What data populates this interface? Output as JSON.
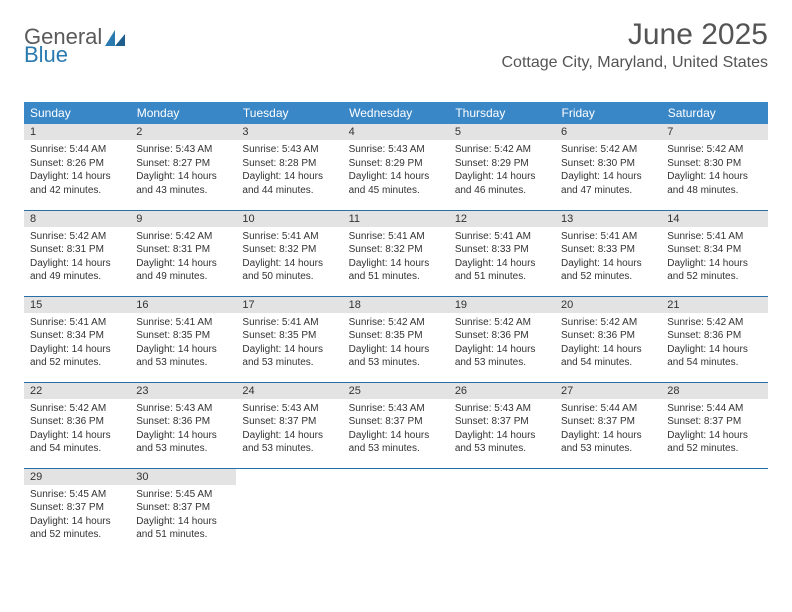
{
  "logo": {
    "general": "General",
    "blue": "Blue"
  },
  "title": "June 2025",
  "location": "Cottage City, Maryland, United States",
  "colors": {
    "header_bg": "#3a87c8",
    "header_fg": "#ffffff",
    "daynum_bg": "#e3e3e3",
    "row_divider": "#2a6ea8",
    "title_fg": "#545454",
    "body_fg": "#333333",
    "logo_text": "#5a5a5a",
    "logo_blue": "#2a7ab0"
  },
  "weekdays": [
    "Sunday",
    "Monday",
    "Tuesday",
    "Wednesday",
    "Thursday",
    "Friday",
    "Saturday"
  ],
  "weeks": [
    [
      {
        "day": "1",
        "sunrise": "5:44 AM",
        "sunset": "8:26 PM",
        "daylight": "14 hours and 42 minutes."
      },
      {
        "day": "2",
        "sunrise": "5:43 AM",
        "sunset": "8:27 PM",
        "daylight": "14 hours and 43 minutes."
      },
      {
        "day": "3",
        "sunrise": "5:43 AM",
        "sunset": "8:28 PM",
        "daylight": "14 hours and 44 minutes."
      },
      {
        "day": "4",
        "sunrise": "5:43 AM",
        "sunset": "8:29 PM",
        "daylight": "14 hours and 45 minutes."
      },
      {
        "day": "5",
        "sunrise": "5:42 AM",
        "sunset": "8:29 PM",
        "daylight": "14 hours and 46 minutes."
      },
      {
        "day": "6",
        "sunrise": "5:42 AM",
        "sunset": "8:30 PM",
        "daylight": "14 hours and 47 minutes."
      },
      {
        "day": "7",
        "sunrise": "5:42 AM",
        "sunset": "8:30 PM",
        "daylight": "14 hours and 48 minutes."
      }
    ],
    [
      {
        "day": "8",
        "sunrise": "5:42 AM",
        "sunset": "8:31 PM",
        "daylight": "14 hours and 49 minutes."
      },
      {
        "day": "9",
        "sunrise": "5:42 AM",
        "sunset": "8:31 PM",
        "daylight": "14 hours and 49 minutes."
      },
      {
        "day": "10",
        "sunrise": "5:41 AM",
        "sunset": "8:32 PM",
        "daylight": "14 hours and 50 minutes."
      },
      {
        "day": "11",
        "sunrise": "5:41 AM",
        "sunset": "8:32 PM",
        "daylight": "14 hours and 51 minutes."
      },
      {
        "day": "12",
        "sunrise": "5:41 AM",
        "sunset": "8:33 PM",
        "daylight": "14 hours and 51 minutes."
      },
      {
        "day": "13",
        "sunrise": "5:41 AM",
        "sunset": "8:33 PM",
        "daylight": "14 hours and 52 minutes."
      },
      {
        "day": "14",
        "sunrise": "5:41 AM",
        "sunset": "8:34 PM",
        "daylight": "14 hours and 52 minutes."
      }
    ],
    [
      {
        "day": "15",
        "sunrise": "5:41 AM",
        "sunset": "8:34 PM",
        "daylight": "14 hours and 52 minutes."
      },
      {
        "day": "16",
        "sunrise": "5:41 AM",
        "sunset": "8:35 PM",
        "daylight": "14 hours and 53 minutes."
      },
      {
        "day": "17",
        "sunrise": "5:41 AM",
        "sunset": "8:35 PM",
        "daylight": "14 hours and 53 minutes."
      },
      {
        "day": "18",
        "sunrise": "5:42 AM",
        "sunset": "8:35 PM",
        "daylight": "14 hours and 53 minutes."
      },
      {
        "day": "19",
        "sunrise": "5:42 AM",
        "sunset": "8:36 PM",
        "daylight": "14 hours and 53 minutes."
      },
      {
        "day": "20",
        "sunrise": "5:42 AM",
        "sunset": "8:36 PM",
        "daylight": "14 hours and 54 minutes."
      },
      {
        "day": "21",
        "sunrise": "5:42 AM",
        "sunset": "8:36 PM",
        "daylight": "14 hours and 54 minutes."
      }
    ],
    [
      {
        "day": "22",
        "sunrise": "5:42 AM",
        "sunset": "8:36 PM",
        "daylight": "14 hours and 54 minutes."
      },
      {
        "day": "23",
        "sunrise": "5:43 AM",
        "sunset": "8:36 PM",
        "daylight": "14 hours and 53 minutes."
      },
      {
        "day": "24",
        "sunrise": "5:43 AM",
        "sunset": "8:37 PM",
        "daylight": "14 hours and 53 minutes."
      },
      {
        "day": "25",
        "sunrise": "5:43 AM",
        "sunset": "8:37 PM",
        "daylight": "14 hours and 53 minutes."
      },
      {
        "day": "26",
        "sunrise": "5:43 AM",
        "sunset": "8:37 PM",
        "daylight": "14 hours and 53 minutes."
      },
      {
        "day": "27",
        "sunrise": "5:44 AM",
        "sunset": "8:37 PM",
        "daylight": "14 hours and 53 minutes."
      },
      {
        "day": "28",
        "sunrise": "5:44 AM",
        "sunset": "8:37 PM",
        "daylight": "14 hours and 52 minutes."
      }
    ],
    [
      {
        "day": "29",
        "sunrise": "5:45 AM",
        "sunset": "8:37 PM",
        "daylight": "14 hours and 52 minutes."
      },
      {
        "day": "30",
        "sunrise": "5:45 AM",
        "sunset": "8:37 PM",
        "daylight": "14 hours and 51 minutes."
      },
      {
        "empty": true
      },
      {
        "empty": true
      },
      {
        "empty": true
      },
      {
        "empty": true
      },
      {
        "empty": true
      }
    ]
  ],
  "labels": {
    "sunrise": "Sunrise: ",
    "sunset": "Sunset: ",
    "daylight": "Daylight: "
  }
}
